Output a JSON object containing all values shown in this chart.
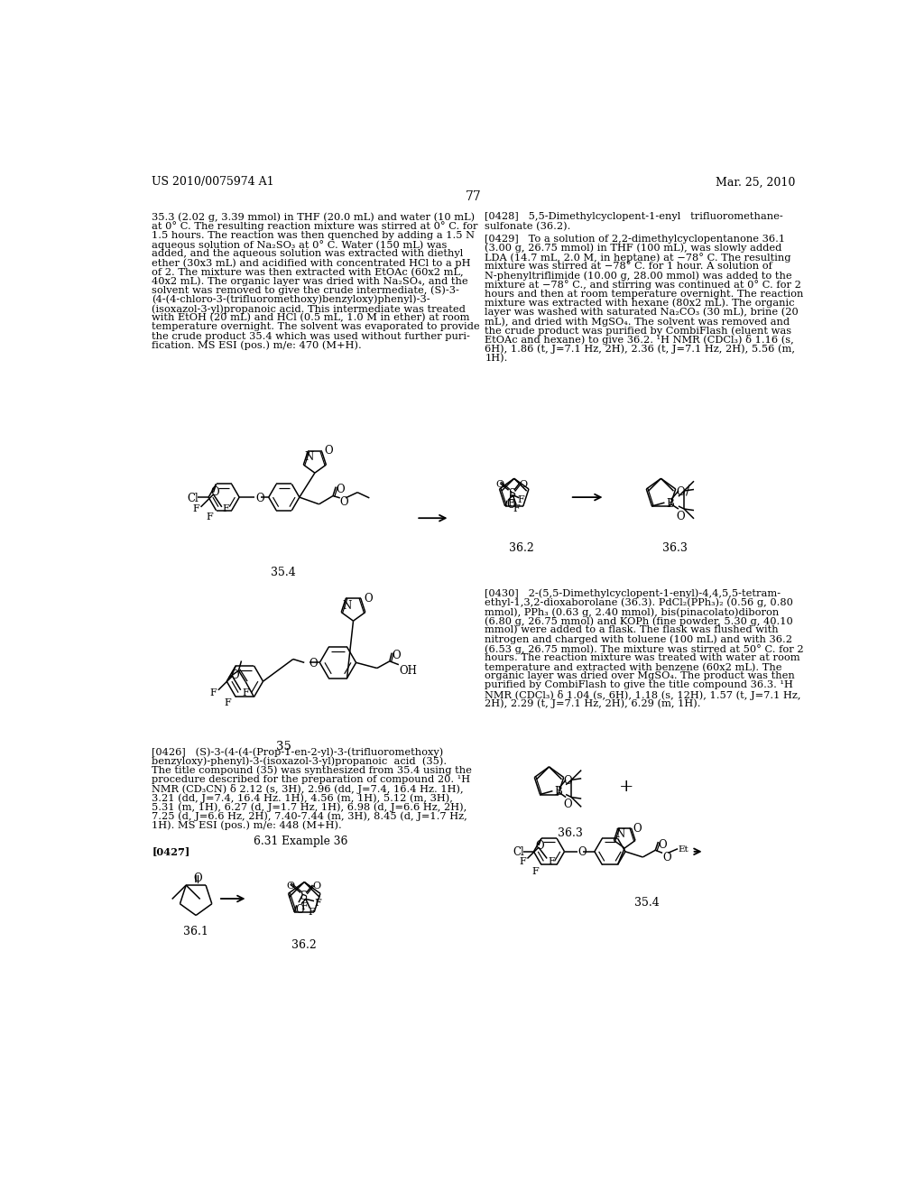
{
  "page_header_left": "US 2010/0075974 A1",
  "page_header_right": "Mar. 25, 2010",
  "page_number": "77",
  "background_color": "#ffffff",
  "left_col_lines": [
    "35.3 (2.02 g, 3.39 mmol) in THF (20.0 mL) and water (10 mL)",
    "at 0° C. The resulting reaction mixture was stirred at 0° C. for",
    "1.5 hours. The reaction was then quenched by adding a 1.5 N",
    "aqueous solution of Na₂SO₃ at 0° C. Water (150 mL) was",
    "added, and the aqueous solution was extracted with diethyl",
    "ether (30x3 mL) and acidified with concentrated HCl to a pH",
    "of 2. The mixture was then extracted with EtOAc (60x2 mL,",
    "40x2 mL). The organic layer was dried with Na₂SO₄, and the",
    "solvent was removed to give the crude intermediate, (S)-3-",
    "(4-(4-chloro-3-(trifluoromethoxy)benzyloxy)phenyl)-3-",
    "(isoxazol-3-yl)propanoic acid. This intermediate was treated",
    "with EtOH (20 mL) and HCl (0.5 mL, 1.0 M in ether) at room",
    "temperature overnight. The solvent was evaporated to provide",
    "the crude product 35.4 which was used without further puri-",
    "fication. MS ESI (pos.) m/e: 470 (M+H)."
  ],
  "right_col_para428_lines": [
    "[0428]   5,5-Dimethylcyclopent-1-enyl   trifluoromethane-",
    "sulfonate (36.2)."
  ],
  "right_col_para429_lines": [
    "[0429]   To a solution of 2,2-dimethylcyclopentanone 36.1",
    "(3.00 g, 26.75 mmol) in THF (100 mL), was slowly added",
    "LDA (14.7 mL, 2.0 M, in heptane) at −78° C. The resulting",
    "mixture was stirred at −78° C. for 1 hour. A solution of",
    "N-phenyltriflimide (10.00 g, 28.00 mmol) was added to the",
    "mixture at −78° C., and stirring was continued at 0° C. for 2",
    "hours and then at room temperature overnight. The reaction",
    "mixture was extracted with hexane (80x2 mL). The organic",
    "layer was washed with saturated Na₂CO₃ (30 mL), brine (20",
    "mL), and dried with MgSO₄. The solvent was removed and",
    "the crude product was purified by CombiFlash (eluent was",
    "EtOAc and hexane) to give 36.2. ¹H NMR (CDCl₃) δ 1.16 (s,",
    "6H), 1.86 (t, J=7.1 Hz, 2H), 2.36 (t, J=7.1 Hz, 2H), 5.56 (m,",
    "1H)."
  ],
  "right_col_para430_lines": [
    "[0430]   2-(5,5-Dimethylcyclopent-1-enyl)-4,4,5,5-tetram-",
    "ethyl-1,3,2-dioxaborolane (36.3). PdCl₂(PPh₃)₂ (0.56 g, 0.80",
    "mmol), PPh₃ (0.63 g, 2.40 mmol), bis(pinacolato)diboron",
    "(6.80 g, 26.75 mmol) and KOPh (fine powder, 5.30 g, 40.10",
    "mmol) were added to a flask. The flask was flushed with",
    "nitrogen and charged with toluene (100 mL) and with 36.2",
    "(6.53 g, 26.75 mmol). The mixture was stirred at 50° C. for 2",
    "hours. The reaction mixture was treated with water at room",
    "temperature and extracted with benzene (60x2 mL). The",
    "organic layer was dried over MgSO₄. The product was then",
    "purified by CombiFlash to give the title compound 36.3. ¹H",
    "NMR (CDCl₃) δ 1.04 (s, 6H), 1.18 (s, 12H), 1.57 (t, J=7.1 Hz,",
    "2H), 2.29 (t, J=7.1 Hz, 2H), 6.29 (m, 1H)."
  ],
  "left_col_para426_lines": [
    "[0426]   (S)-3-(4-(4-(Prop-1-en-2-yl)-3-(trifluoromethoxy)",
    "benzyloxy)-phenyl)-3-(isoxazol-3-yl)propanoic  acid  (35).",
    "The title compound (35) was synthesized from 35.4 using the",
    "procedure described for the preparation of compound 20. ¹H",
    "NMR (CD₃CN) δ 2.12 (s, 3H), 2.96 (dd, J=7.4, 16.4 Hz. 1H),",
    "3.21 (dd, J=7.4, 16.4 Hz. 1H), 4.56 (m, 1H), 5.12 (m, 3H),",
    "5.31 (m, 1H), 6.27 (d, J=1.7 Hz, 1H), 6.98 (d, J=6.6 Hz, 2H),",
    "7.25 (d, J=6.6 Hz, 2H), 7.40-7.44 (m, 3H), 8.45 (d, J=1.7 Hz,",
    "1H). MS ESI (pos.) m/e: 448 (M+H)."
  ],
  "section_header": "6.31 Example 36",
  "para427_label": "[0427]",
  "label_354": "35.4",
  "label_35": "35",
  "label_362": "36.2",
  "label_363": "36.3",
  "label_361": "36.1"
}
